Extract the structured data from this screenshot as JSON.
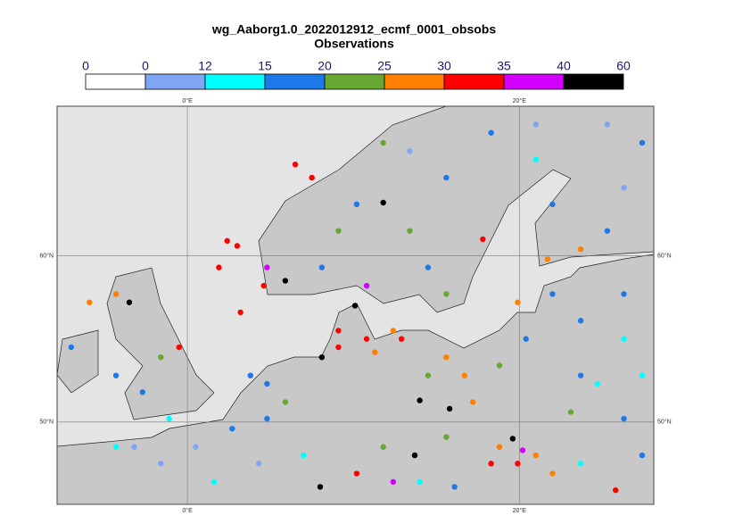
{
  "map": {
    "title": "wg_Aaborg1.0_2022012912_ecmf_0001_obsobs",
    "subtitle": "Observations",
    "colorbar": {
      "bounds": [
        0,
        0,
        12,
        15,
        20,
        25,
        30,
        35,
        40,
        60
      ],
      "colors": [
        "#ffffff",
        "#7fa6f4",
        "#00ffff",
        "#1f78e8",
        "#66a832",
        "#ff8000",
        "#ff0000",
        "#d400ff",
        "#000000"
      ]
    },
    "xlim": [
      -7.85,
      28.1
    ],
    "ylim": [
      45.05,
      69.0
    ],
    "lon_ticks": [
      {
        "value": 0,
        "label": "0°E"
      },
      {
        "value": 20,
        "label": "20°E"
      }
    ],
    "lat_ticks": [
      {
        "value": 60,
        "label": "60°N"
      },
      {
        "value": 50,
        "label": "50°N"
      }
    ]
  },
  "observations": [
    [
      2.4,
      60.9,
      32
    ],
    [
      3.0,
      60.6,
      32
    ],
    [
      4.8,
      59.3,
      37
    ],
    [
      5.9,
      58.5,
      45
    ],
    [
      1.9,
      59.3,
      32
    ],
    [
      6.5,
      65.5,
      32
    ],
    [
      7.5,
      64.7,
      32
    ],
    [
      4.6,
      58.2,
      32
    ],
    [
      3.2,
      56.6,
      32
    ],
    [
      10.1,
      57.0,
      42
    ],
    [
      9.1,
      55.5,
      33
    ],
    [
      10.8,
      55.0,
      32
    ],
    [
      12.4,
      55.5,
      28
    ],
    [
      8.1,
      53.9,
      41
    ],
    [
      9.1,
      54.5,
      32
    ],
    [
      11.3,
      54.2,
      27
    ],
    [
      12.9,
      55.0,
      32
    ],
    [
      15.6,
      53.9,
      27
    ],
    [
      16.7,
      52.8,
      27
    ],
    [
      18.8,
      53.4,
      22
    ],
    [
      14.5,
      52.8,
      22
    ],
    [
      17.2,
      51.2,
      27
    ],
    [
      4.8,
      52.3,
      17
    ],
    [
      3.8,
      52.8,
      17
    ],
    [
      5.9,
      51.2,
      22
    ],
    [
      4.8,
      50.2,
      17
    ],
    [
      0.5,
      48.5,
      8
    ],
    [
      -1.6,
      47.5,
      8
    ],
    [
      1.6,
      46.4,
      13
    ],
    [
      2.7,
      49.6,
      17
    ],
    [
      -3.2,
      48.5,
      8
    ],
    [
      -4.3,
      48.5,
      13
    ],
    [
      4.3,
      47.5,
      8
    ],
    [
      -3.5,
      57.2,
      42
    ],
    [
      -4.3,
      57.7,
      27
    ],
    [
      -1.6,
      53.9,
      22
    ],
    [
      -0.5,
      54.5,
      32
    ],
    [
      -2.7,
      51.8,
      17
    ],
    [
      -4.3,
      52.8,
      17
    ],
    [
      -1.1,
      50.2,
      13
    ],
    [
      -7.0,
      54.5,
      17
    ],
    [
      -5.9,
      57.2,
      27
    ],
    [
      11.8,
      63.2,
      45
    ],
    [
      13.4,
      61.5,
      22
    ],
    [
      14.5,
      59.3,
      17
    ],
    [
      15.6,
      57.7,
      22
    ],
    [
      10.8,
      58.2,
      37
    ],
    [
      13.4,
      66.3,
      8
    ],
    [
      15.6,
      64.7,
      17
    ],
    [
      9.1,
      61.5,
      22
    ],
    [
      8.1,
      59.3,
      17
    ],
    [
      10.2,
      63.1,
      17
    ],
    [
      11.8,
      66.8,
      22
    ],
    [
      22.0,
      63.1,
      17
    ],
    [
      23.7,
      60.4,
      27
    ],
    [
      21.0,
      65.8,
      13
    ],
    [
      26.3,
      64.1,
      8
    ],
    [
      25.3,
      61.5,
      17
    ],
    [
      17.8,
      61.0,
      32
    ],
    [
      21.7,
      59.8,
      27
    ],
    [
      22.0,
      57.7,
      17
    ],
    [
      23.7,
      56.1,
      17
    ],
    [
      19.9,
      57.2,
      27
    ],
    [
      26.3,
      55.0,
      13
    ],
    [
      20.4,
      55.0,
      17
    ],
    [
      14.0,
      51.3,
      45
    ],
    [
      15.8,
      50.8,
      45
    ],
    [
      13.7,
      48.0,
      45
    ],
    [
      11.8,
      48.5,
      22
    ],
    [
      15.6,
      49.1,
      22
    ],
    [
      18.8,
      48.5,
      27
    ],
    [
      19.9,
      47.5,
      32
    ],
    [
      21.0,
      48.0,
      27
    ],
    [
      19.6,
      49.0,
      45
    ],
    [
      18.3,
      47.5,
      32
    ],
    [
      22.0,
      46.9,
      27
    ],
    [
      20.2,
      48.3,
      37
    ],
    [
      8.0,
      46.1,
      45
    ],
    [
      10.2,
      46.9,
      32
    ],
    [
      7.0,
      48.0,
      13
    ],
    [
      12.4,
      46.4,
      37
    ],
    [
      14.0,
      46.4,
      13
    ],
    [
      16.1,
      46.1,
      17
    ],
    [
      23.7,
      47.5,
      13
    ],
    [
      25.8,
      45.9,
      32
    ],
    [
      27.4,
      48.0,
      17
    ],
    [
      26.3,
      50.2,
      17
    ],
    [
      24.7,
      52.3,
      13
    ],
    [
      23.7,
      52.8,
      17
    ],
    [
      27.4,
      52.8,
      13
    ],
    [
      23.1,
      50.6,
      22
    ],
    [
      26.3,
      57.7,
      17
    ],
    [
      18.3,
      67.4,
      17
    ],
    [
      21.0,
      67.9,
      8
    ],
    [
      25.3,
      67.9,
      8
    ],
    [
      27.4,
      66.8,
      17
    ]
  ]
}
